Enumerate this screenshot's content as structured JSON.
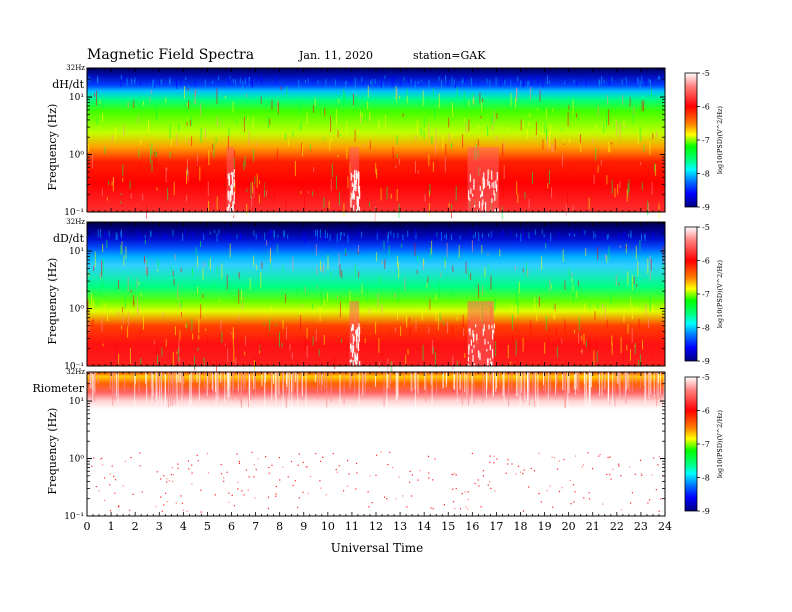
{
  "header": {
    "title": "Magnetic Field Spectra",
    "date": "Jan. 11, 2020",
    "station": "station=GAK"
  },
  "chart_data": {
    "type": "heatmap",
    "xlabel": "Universal Time",
    "xlim": [
      0,
      24
    ],
    "x_ticks": [
      "0",
      "1",
      "2",
      "3",
      "4",
      "5",
      "6",
      "7",
      "8",
      "9",
      "10",
      "11",
      "12",
      "13",
      "14",
      "15",
      "16",
      "17",
      "18",
      "19",
      "20",
      "21",
      "22",
      "23",
      "24"
    ],
    "ylabel": "Frequency (Hz)",
    "ylim": [
      0.1,
      32
    ],
    "y_scale": "log",
    "colorbar": {
      "label": "log10(PSD)(V^2/Hz)",
      "ticks": [
        "-5",
        "-6",
        "-7",
        "-8",
        "-9"
      ],
      "range": [
        -9,
        -5
      ],
      "colors": [
        "#000080",
        "#0000ff",
        "#0080ff",
        "#00ffff",
        "#00ff80",
        "#00ff00",
        "#ffff00",
        "#ff8000",
        "#ff0000",
        "#ff8080",
        "#ffffff"
      ]
    },
    "panels": [
      {
        "label": "dH/dt",
        "top_label": "32Hz",
        "y_tick_labels": [
          "10¹",
          "10⁰",
          "10⁻¹"
        ],
        "features": [
          {
            "t_start": 5.8,
            "t_end": 6.1,
            "event": "broadband"
          },
          {
            "t_start": 10.9,
            "t_end": 11.3,
            "event": "broadband"
          },
          {
            "t_start": 15.8,
            "t_end": 17.1,
            "event": "broadband"
          }
        ]
      },
      {
        "label": "dD/dt",
        "top_label": "32Hz",
        "y_tick_labels": [
          "10¹",
          "10⁰",
          "10⁻¹"
        ],
        "features": [
          {
            "t_start": 10.9,
            "t_end": 11.3,
            "event": "broadband"
          },
          {
            "t_start": 15.8,
            "t_end": 16.9,
            "event": "broadband"
          }
        ]
      },
      {
        "label": "Riometer",
        "top_label": "32Hz",
        "y_tick_labels": [
          "10¹",
          "10⁰",
          "10⁻¹"
        ],
        "features": []
      }
    ]
  }
}
